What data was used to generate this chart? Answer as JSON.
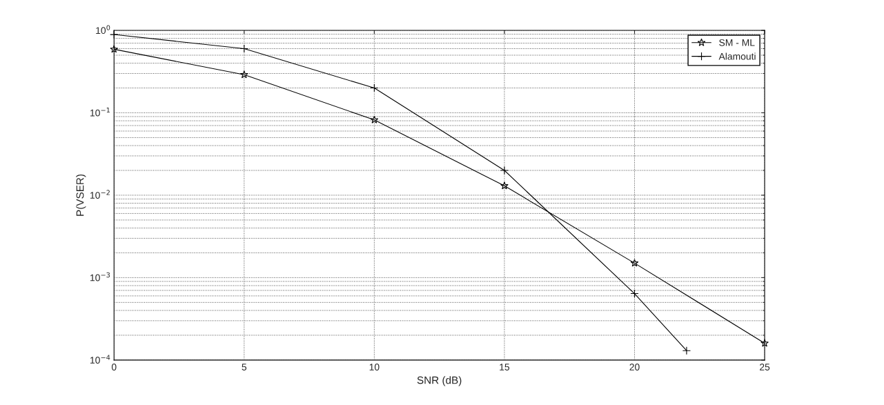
{
  "chart_data": {
    "type": "line",
    "xlabel": "SNR (dB)",
    "ylabel": "P(VSER)",
    "log": "y",
    "grid": true,
    "legend": "top right",
    "xlim": [
      0,
      25
    ],
    "xticks": [
      0,
      5,
      10,
      15,
      20,
      25
    ],
    "ylim": [
      0.0001,
      1
    ],
    "yticks": [
      {
        "value": 0.0001,
        "label": "10$^{−4}$"
      },
      {
        "value": 0.001,
        "label": "10$^{−3}$"
      },
      {
        "value": 0.01,
        "label": "10$^{−2}$"
      },
      {
        "value": 0.1,
        "label": "10$^{−1}$"
      },
      {
        "value": 1,
        "label": "10$^{0}$"
      }
    ],
    "series": [
      {
        "name": "SM - ML",
        "color": "#000000",
        "marker": "star",
        "x": [
          0,
          5,
          10,
          15,
          20,
          25
        ],
        "values": [
          0.59,
          0.29,
          0.082,
          0.013,
          0.0015,
          0.00016
        ]
      },
      {
        "name": "Alamouti",
        "color": "#000000",
        "marker": "cross",
        "x": [
          0,
          5,
          10,
          15,
          20,
          22
        ],
        "values": [
          0.89,
          0.6,
          0.2,
          0.02,
          0.00064,
          0.00013
        ]
      }
    ]
  }
}
